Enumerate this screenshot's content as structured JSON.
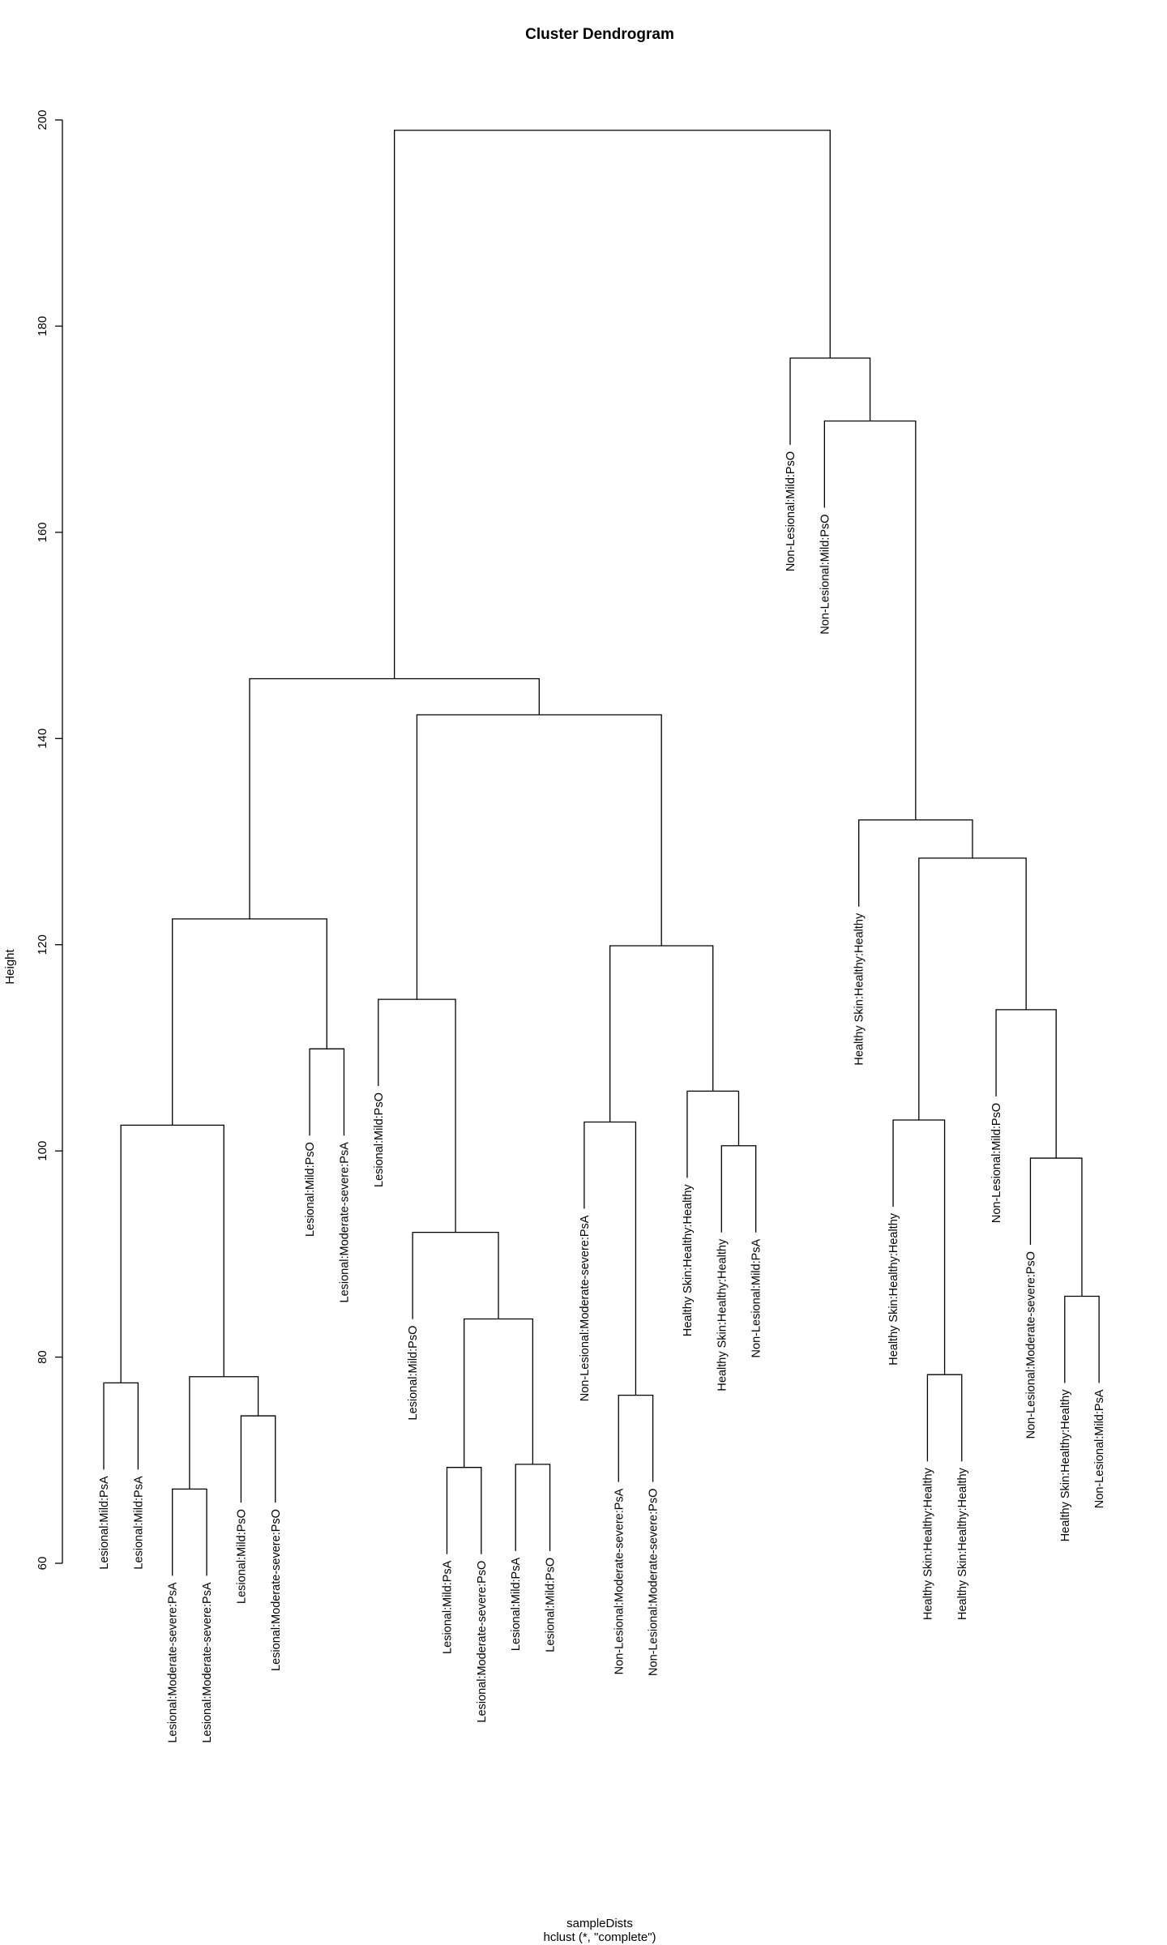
{
  "chart_data": {
    "type": "dendrogram",
    "title": "Cluster Dendrogram",
    "ylabel": "Height",
    "xlabel": "sampleDists",
    "sublabel": "hclust (*, \"complete\")",
    "ylim": [
      60,
      200
    ],
    "yticks": [
      60,
      80,
      100,
      120,
      140,
      160,
      180,
      200
    ],
    "ytick_labels": [
      "60",
      "80",
      "100",
      "120",
      "140",
      "160",
      "180",
      "200"
    ],
    "leaves": [
      "Lesional:Mild:PsA",
      "Lesional:Mild:PsA",
      "Lesional:Moderate-severe:PsA",
      "Lesional:Moderate-severe:PsA",
      "Lesional:Mild:PsO",
      "Lesional:Moderate-severe:PsO",
      "Lesional:Mild:PsO",
      "Lesional:Moderate-severe:PsA",
      "Lesional:Mild:PsO",
      "Lesional:Mild:PsO",
      "Lesional:Mild:PsA",
      "Lesional:Moderate-severe:PsO",
      "Lesional:Mild:PsA",
      "Lesional:Mild:PsO",
      "Non-Lesional:Moderate-severe:PsA",
      "Non-Lesional:Moderate-severe:PsA",
      "Non-Lesional:Moderate-severe:PsO",
      "Healthy Skin:Healthy:Healthy",
      "Healthy Skin:Healthy:Healthy",
      "Non-Lesional:Mild:PsA",
      "Non-Lesional:Mild:PsO",
      "Non-Lesional:Mild:PsO",
      "Healthy Skin:Healthy:Healthy",
      "Healthy Skin:Healthy:Healthy",
      "Healthy Skin:Healthy:Healthy",
      "Healthy Skin:Healthy:Healthy",
      "Non-Lesional:Mild:PsO",
      "Non-Lesional:Moderate-severe:PsO",
      "Healthy Skin:Healthy:Healthy",
      "Non-Lesional:Mild:PsA"
    ],
    "merges": [
      {
        "a": [
          "leaf",
          0
        ],
        "b": [
          "leaf",
          1
        ],
        "height": 77.5
      },
      {
        "a": [
          "leaf",
          2
        ],
        "b": [
          "leaf",
          3
        ],
        "height": 67.2
      },
      {
        "a": [
          "leaf",
          4
        ],
        "b": [
          "leaf",
          5
        ],
        "height": 74.3
      },
      {
        "a": [
          "node",
          1
        ],
        "b": [
          "node",
          2
        ],
        "height": 78.1
      },
      {
        "a": [
          "node",
          0
        ],
        "b": [
          "node",
          3
        ],
        "height": 102.5
      },
      {
        "a": [
          "leaf",
          6
        ],
        "b": [
          "leaf",
          7
        ],
        "height": 109.9
      },
      {
        "a": [
          "node",
          4
        ],
        "b": [
          "node",
          5
        ],
        "height": 122.5
      },
      {
        "a": [
          "leaf",
          10
        ],
        "b": [
          "leaf",
          11
        ],
        "height": 69.3
      },
      {
        "a": [
          "leaf",
          12
        ],
        "b": [
          "leaf",
          13
        ],
        "height": 69.6
      },
      {
        "a": [
          "node",
          7
        ],
        "b": [
          "node",
          8
        ],
        "height": 83.7
      },
      {
        "a": [
          "leaf",
          9
        ],
        "b": [
          "node",
          9
        ],
        "height": 92.1
      },
      {
        "a": [
          "leaf",
          8
        ],
        "b": [
          "node",
          10
        ],
        "height": 114.7
      },
      {
        "a": [
          "leaf",
          15
        ],
        "b": [
          "leaf",
          16
        ],
        "height": 76.3
      },
      {
        "a": [
          "leaf",
          14
        ],
        "b": [
          "node",
          12
        ],
        "height": 102.8
      },
      {
        "a": [
          "leaf",
          18
        ],
        "b": [
          "leaf",
          19
        ],
        "height": 100.5
      },
      {
        "a": [
          "leaf",
          17
        ],
        "b": [
          "node",
          14
        ],
        "height": 105.8
      },
      {
        "a": [
          "node",
          13
        ],
        "b": [
          "node",
          15
        ],
        "height": 119.9
      },
      {
        "a": [
          "node",
          11
        ],
        "b": [
          "node",
          16
        ],
        "height": 142.3
      },
      {
        "a": [
          "node",
          6
        ],
        "b": [
          "node",
          17
        ],
        "height": 145.8
      },
      {
        "a": [
          "leaf",
          24
        ],
        "b": [
          "leaf",
          25
        ],
        "height": 78.3
      },
      {
        "a": [
          "leaf",
          23
        ],
        "b": [
          "node",
          19
        ],
        "height": 103.0
      },
      {
        "a": [
          "leaf",
          28
        ],
        "b": [
          "leaf",
          29
        ],
        "height": 85.9
      },
      {
        "a": [
          "leaf",
          27
        ],
        "b": [
          "node",
          21
        ],
        "height": 99.3
      },
      {
        "a": [
          "leaf",
          26
        ],
        "b": [
          "node",
          22
        ],
        "height": 113.7
      },
      {
        "a": [
          "node",
          20
        ],
        "b": [
          "node",
          23
        ],
        "height": 128.4
      },
      {
        "a": [
          "leaf",
          22
        ],
        "b": [
          "node",
          24
        ],
        "height": 132.1
      },
      {
        "a": [
          "leaf",
          21
        ],
        "b": [
          "node",
          25
        ],
        "height": 170.8
      },
      {
        "a": [
          "leaf",
          20
        ],
        "b": [
          "node",
          26
        ],
        "height": 176.9
      },
      {
        "a": [
          "node",
          18
        ],
        "b": [
          "node",
          27
        ],
        "height": 199.0
      }
    ],
    "grid": false,
    "legend": "none"
  }
}
